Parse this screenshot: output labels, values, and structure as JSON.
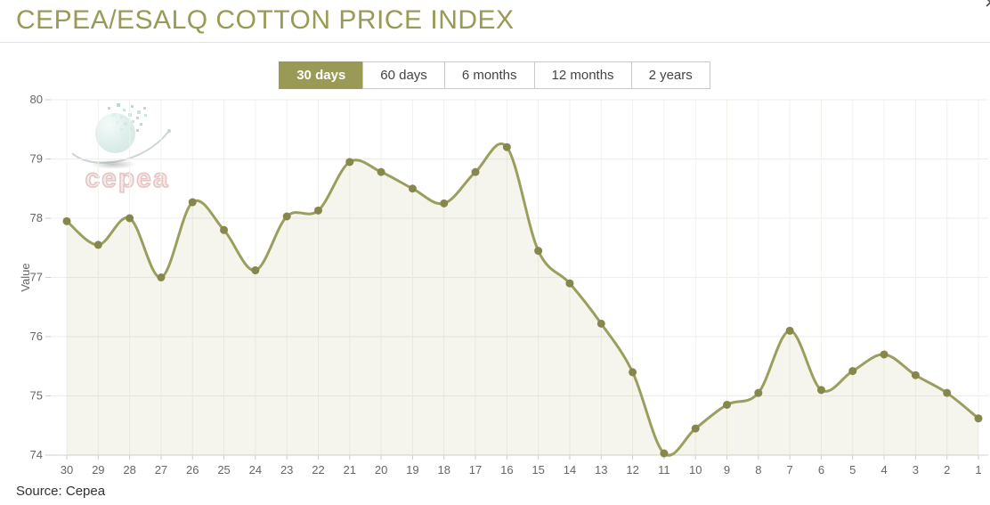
{
  "window": {
    "close_label": "×"
  },
  "header": {
    "title": "CEPEA/ESALQ COTTON PRICE INDEX"
  },
  "range_selector": {
    "buttons": [
      {
        "label": "30 days",
        "selected": true
      },
      {
        "label": "60 days",
        "selected": false
      },
      {
        "label": "6 months",
        "selected": false
      },
      {
        "label": "12 months",
        "selected": false
      },
      {
        "label": "2 years",
        "selected": false
      }
    ]
  },
  "watermark": {
    "text": "cepea"
  },
  "footer": {
    "source": "Source: Cepea"
  },
  "colors": {
    "accent": "#999a56",
    "line": "#9c9e5e",
    "marker": "#85874c",
    "fill": "rgba(153,154,86,0.10)",
    "grid": "#ededed",
    "grid_vertical": "#f1f1ea",
    "axis": "#d2d2d2",
    "tick_label": "#666666"
  },
  "chart_data": {
    "type": "area",
    "title": "CEPEA/ESALQ COTTON PRICE INDEX",
    "xlabel": "",
    "ylabel": "Value",
    "ylim": [
      74,
      80
    ],
    "y_ticks": [
      74,
      75,
      76,
      77,
      78,
      79,
      80
    ],
    "grid": true,
    "legend": "none",
    "categories": [
      "30",
      "29",
      "28",
      "27",
      "26",
      "25",
      "24",
      "23",
      "22",
      "21",
      "20",
      "19",
      "18",
      "17",
      "16",
      "15",
      "14",
      "13",
      "12",
      "11",
      "10",
      "9",
      "8",
      "7",
      "6",
      "5",
      "4",
      "3",
      "2",
      "1"
    ],
    "series": [
      {
        "name": "Value",
        "values": [
          77.95,
          77.55,
          78.0,
          77.0,
          78.27,
          77.8,
          77.12,
          78.03,
          78.13,
          78.95,
          78.78,
          78.5,
          78.25,
          78.78,
          79.2,
          77.45,
          76.9,
          76.22,
          75.4,
          74.03,
          74.45,
          74.85,
          75.05,
          76.1,
          75.1,
          75.42,
          75.7,
          75.35,
          75.05,
          74.62
        ]
      }
    ]
  }
}
